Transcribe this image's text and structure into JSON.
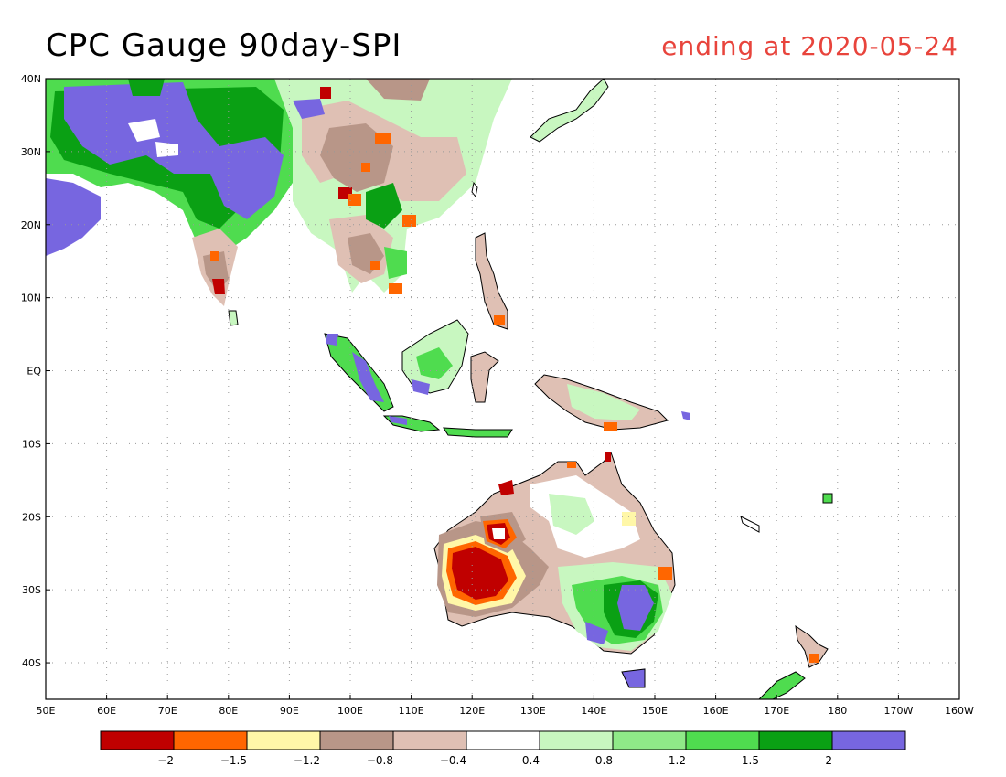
{
  "title": "CPC Gauge 90day-SPI",
  "subtitle": "ending at 2020-05-24",
  "title_color": "#000000",
  "subtitle_color": "#e8443c",
  "map": {
    "lon_range": [
      50,
      200
    ],
    "lat_range": [
      -45,
      40
    ],
    "lat_ticks": [
      {
        "value": 40,
        "label": "40N"
      },
      {
        "value": 30,
        "label": "30N"
      },
      {
        "value": 20,
        "label": "20N"
      },
      {
        "value": 10,
        "label": "10N"
      },
      {
        "value": 0,
        "label": "EQ"
      },
      {
        "value": -10,
        "label": "10S"
      },
      {
        "value": -20,
        "label": "20S"
      },
      {
        "value": -30,
        "label": "30S"
      },
      {
        "value": -40,
        "label": "40S"
      }
    ],
    "lon_ticks": [
      {
        "value": 50,
        "label": "50E"
      },
      {
        "value": 60,
        "label": "60E"
      },
      {
        "value": 70,
        "label": "70E"
      },
      {
        "value": 80,
        "label": "80E"
      },
      {
        "value": 90,
        "label": "90E"
      },
      {
        "value": 100,
        "label": "100E"
      },
      {
        "value": 110,
        "label": "110E"
      },
      {
        "value": 120,
        "label": "120E"
      },
      {
        "value": 130,
        "label": "130E"
      },
      {
        "value": 140,
        "label": "140E"
      },
      {
        "value": 150,
        "label": "150E"
      },
      {
        "value": 160,
        "label": "160E"
      },
      {
        "value": 170,
        "label": "170E"
      },
      {
        "value": 180,
        "label": "180"
      },
      {
        "value": 190,
        "label": "170W"
      },
      {
        "value": 200,
        "label": "160W"
      }
    ],
    "grid": "dotted"
  },
  "colorbar": {
    "colors": [
      "#c00000",
      "#ff6600",
      "#fff7a8",
      "#b89688",
      "#dfc0b4",
      "#ffffff",
      "#c8f7c0",
      "#8fea88",
      "#4fdc4f",
      "#0aa014",
      "#7766e0"
    ],
    "labels": [
      "-2",
      "-1.5",
      "-1.2",
      "-0.8",
      "-0.4",
      "0.4",
      "0.8",
      "1.2",
      "1.5",
      "2"
    ]
  }
}
